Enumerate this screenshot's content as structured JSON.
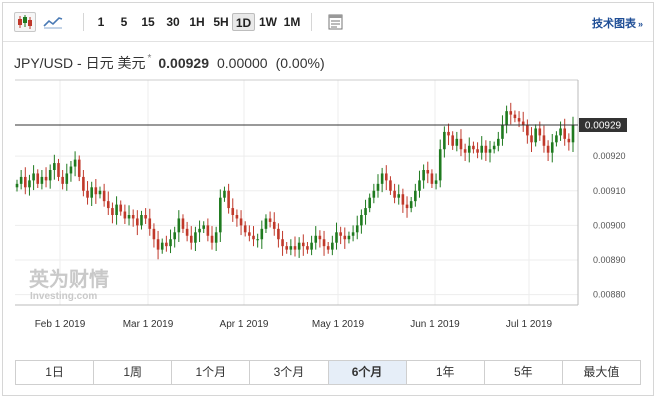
{
  "toolbar": {
    "icons": [
      "candlestick-chart-icon",
      "line-chart-icon",
      "settings-panel-icon"
    ],
    "timeframes": [
      {
        "label": "1",
        "active": false
      },
      {
        "label": "5",
        "active": false
      },
      {
        "label": "15",
        "active": false
      },
      {
        "label": "30",
        "active": false
      },
      {
        "label": "1H",
        "active": false
      },
      {
        "label": "5H",
        "active": false
      },
      {
        "label": "1D",
        "active": true
      },
      {
        "label": "1W",
        "active": false
      },
      {
        "label": "1M",
        "active": false
      }
    ],
    "technical_chart_label": "技术图表",
    "technical_chart_arrow": "»"
  },
  "quote": {
    "symbol": "JPY/USD - 日元 美元",
    "star": "*",
    "price": "0.00929",
    "change": "0.00000",
    "change_pct": "(0.00%)"
  },
  "watermark": {
    "line1": "英为财情",
    "line2": "Investing.com"
  },
  "chart_data": {
    "type": "candlestick",
    "x_tick_labels": [
      "Feb 1 2019",
      "Mar 1 2019",
      "Apr 1 2019",
      "May 1 2019",
      "Jun 1 2019",
      "Jul 1 2019"
    ],
    "y_tick_labels": [
      "0.00920",
      "0.00910",
      "0.00900",
      "0.00890",
      "0.00880"
    ],
    "y_ticks": [
      0.0092,
      0.0091,
      0.009,
      0.0089,
      0.0088
    ],
    "ylim": [
      0.00877,
      0.00942
    ],
    "current_price": 0.00929,
    "current_price_label": "0.00929",
    "up_color": "#1f7a1f",
    "down_color": "#c0392b",
    "closes": [
      0.00912,
      0.00914,
      0.00911,
      0.00913,
      0.00915,
      0.00912,
      0.00914,
      0.00913,
      0.00916,
      0.00918,
      0.00914,
      0.00912,
      0.00915,
      0.00917,
      0.00919,
      0.00914,
      0.0091,
      0.00908,
      0.00911,
      0.00909,
      0.0091,
      0.00907,
      0.00905,
      0.00903,
      0.00906,
      0.00904,
      0.00902,
      0.00903,
      0.00902,
      0.009,
      0.00903,
      0.00902,
      0.00899,
      0.00896,
      0.00893,
      0.00895,
      0.00894,
      0.00896,
      0.00898,
      0.00902,
      0.00899,
      0.00897,
      0.00895,
      0.00898,
      0.00899,
      0.009,
      0.00897,
      0.00895,
      0.00898,
      0.00908,
      0.0091,
      0.00905,
      0.00903,
      0.00902,
      0.009,
      0.00898,
      0.00897,
      0.00896,
      0.00896,
      0.00899,
      0.00902,
      0.00901,
      0.00899,
      0.00896,
      0.00894,
      0.00893,
      0.00894,
      0.00893,
      0.00895,
      0.00894,
      0.00893,
      0.00895,
      0.00897,
      0.00896,
      0.00894,
      0.00893,
      0.00895,
      0.00898,
      0.00897,
      0.00896,
      0.00897,
      0.00898,
      0.009,
      0.00903,
      0.00905,
      0.00908,
      0.0091,
      0.00912,
      0.00915,
      0.00913,
      0.0091,
      0.00908,
      0.00909,
      0.00906,
      0.00905,
      0.00907,
      0.0091,
      0.00913,
      0.00916,
      0.00915,
      0.00912,
      0.00913,
      0.00922,
      0.00927,
      0.00926,
      0.00923,
      0.00925,
      0.00922,
      0.00921,
      0.00923,
      0.00922,
      0.00921,
      0.00923,
      0.00921,
      0.00922,
      0.00923,
      0.00925,
      0.00929,
      0.00933,
      0.00932,
      0.00931,
      0.0093,
      0.00929,
      0.00926,
      0.00924,
      0.00928,
      0.00926,
      0.00923,
      0.00921,
      0.00924,
      0.00926,
      0.00928,
      0.00925,
      0.00924,
      0.00929
    ]
  },
  "range_tabs": [
    {
      "label": "1日",
      "active": false
    },
    {
      "label": "1周",
      "active": false
    },
    {
      "label": "1个月",
      "active": false
    },
    {
      "label": "3个月",
      "active": false
    },
    {
      "label": "6个月",
      "active": true
    },
    {
      "label": "1年",
      "active": false
    },
    {
      "label": "5年",
      "active": false
    },
    {
      "label": "最大值",
      "active": false
    }
  ]
}
